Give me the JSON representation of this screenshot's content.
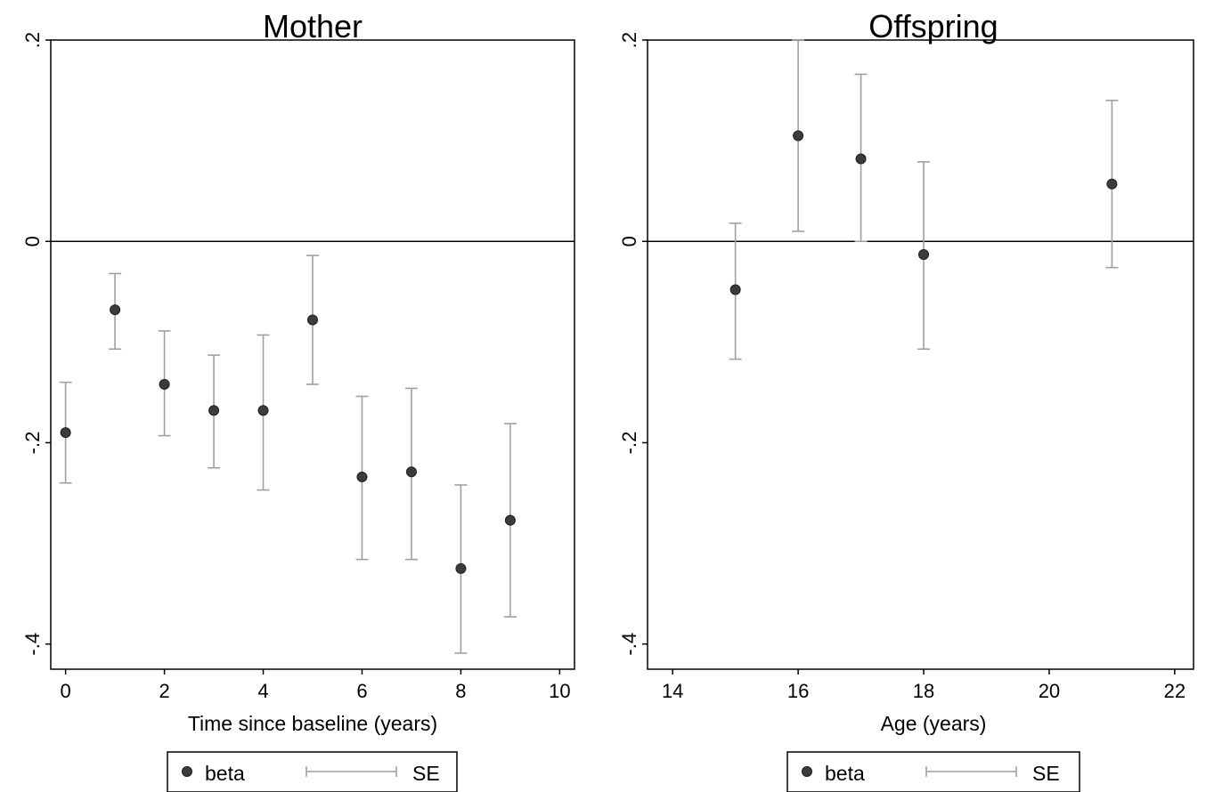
{
  "chart_data": [
    {
      "type": "scatter",
      "title": "Mother",
      "xlabel": "Time since baseline (years)",
      "ylabel": "",
      "xlim": [
        -0.3,
        10.3
      ],
      "ylim": [
        -0.425,
        0.2
      ],
      "xticks": [
        0,
        2,
        4,
        6,
        8,
        10
      ],
      "xtick_labels": [
        "0",
        "2",
        "4",
        "6",
        "8",
        "10"
      ],
      "yticks": [
        -0.4,
        -0.2,
        0,
        0.2
      ],
      "ytick_labels": [
        "-.4",
        "-.2",
        "0",
        ".2"
      ],
      "reference_line_y": 0,
      "grid": false,
      "legend": {
        "position": "bottom",
        "entries": [
          "beta",
          "SE"
        ]
      },
      "series": [
        {
          "name": "beta",
          "x": [
            0,
            1,
            2,
            3,
            4,
            5,
            6,
            7,
            8,
            9
          ],
          "y": [
            -0.19,
            -0.068,
            -0.142,
            -0.168,
            -0.168,
            -0.078,
            -0.234,
            -0.229,
            -0.325,
            -0.277
          ],
          "se_low": [
            -0.24,
            -0.107,
            -0.193,
            -0.225,
            -0.247,
            -0.142,
            -0.316,
            -0.316,
            -0.409,
            -0.373
          ],
          "se_high": [
            -0.14,
            -0.032,
            -0.089,
            -0.113,
            -0.093,
            -0.014,
            -0.154,
            -0.146,
            -0.242,
            -0.181
          ]
        }
      ]
    },
    {
      "type": "scatter",
      "title": "Offspring",
      "xlabel": "Age (years)",
      "ylabel": "",
      "xlim": [
        13.6,
        22.3
      ],
      "ylim": [
        -0.425,
        0.2
      ],
      "xticks": [
        14,
        16,
        18,
        20,
        22
      ],
      "xtick_labels": [
        "14",
        "16",
        "18",
        "20",
        "22"
      ],
      "yticks": [
        -0.4,
        -0.2,
        0,
        0.2
      ],
      "ytick_labels": [
        "-.4",
        "-.2",
        "0",
        ".2"
      ],
      "reference_line_y": 0,
      "grid": false,
      "legend": {
        "position": "bottom",
        "entries": [
          "beta",
          "SE"
        ]
      },
      "series": [
        {
          "name": "beta",
          "x": [
            15,
            16,
            17,
            18,
            21
          ],
          "y": [
            -0.048,
            0.105,
            0.082,
            -0.013,
            0.057
          ],
          "se_low": [
            -0.117,
            0.01,
            0.0,
            -0.107,
            -0.026
          ],
          "se_high": [
            0.018,
            0.2,
            0.166,
            0.079,
            0.14
          ]
        }
      ]
    }
  ],
  "colors": {
    "marker": "#3c3c3c",
    "error_bar": "#a0a0a0",
    "axis": "#000000",
    "reference_line": "#000000"
  }
}
